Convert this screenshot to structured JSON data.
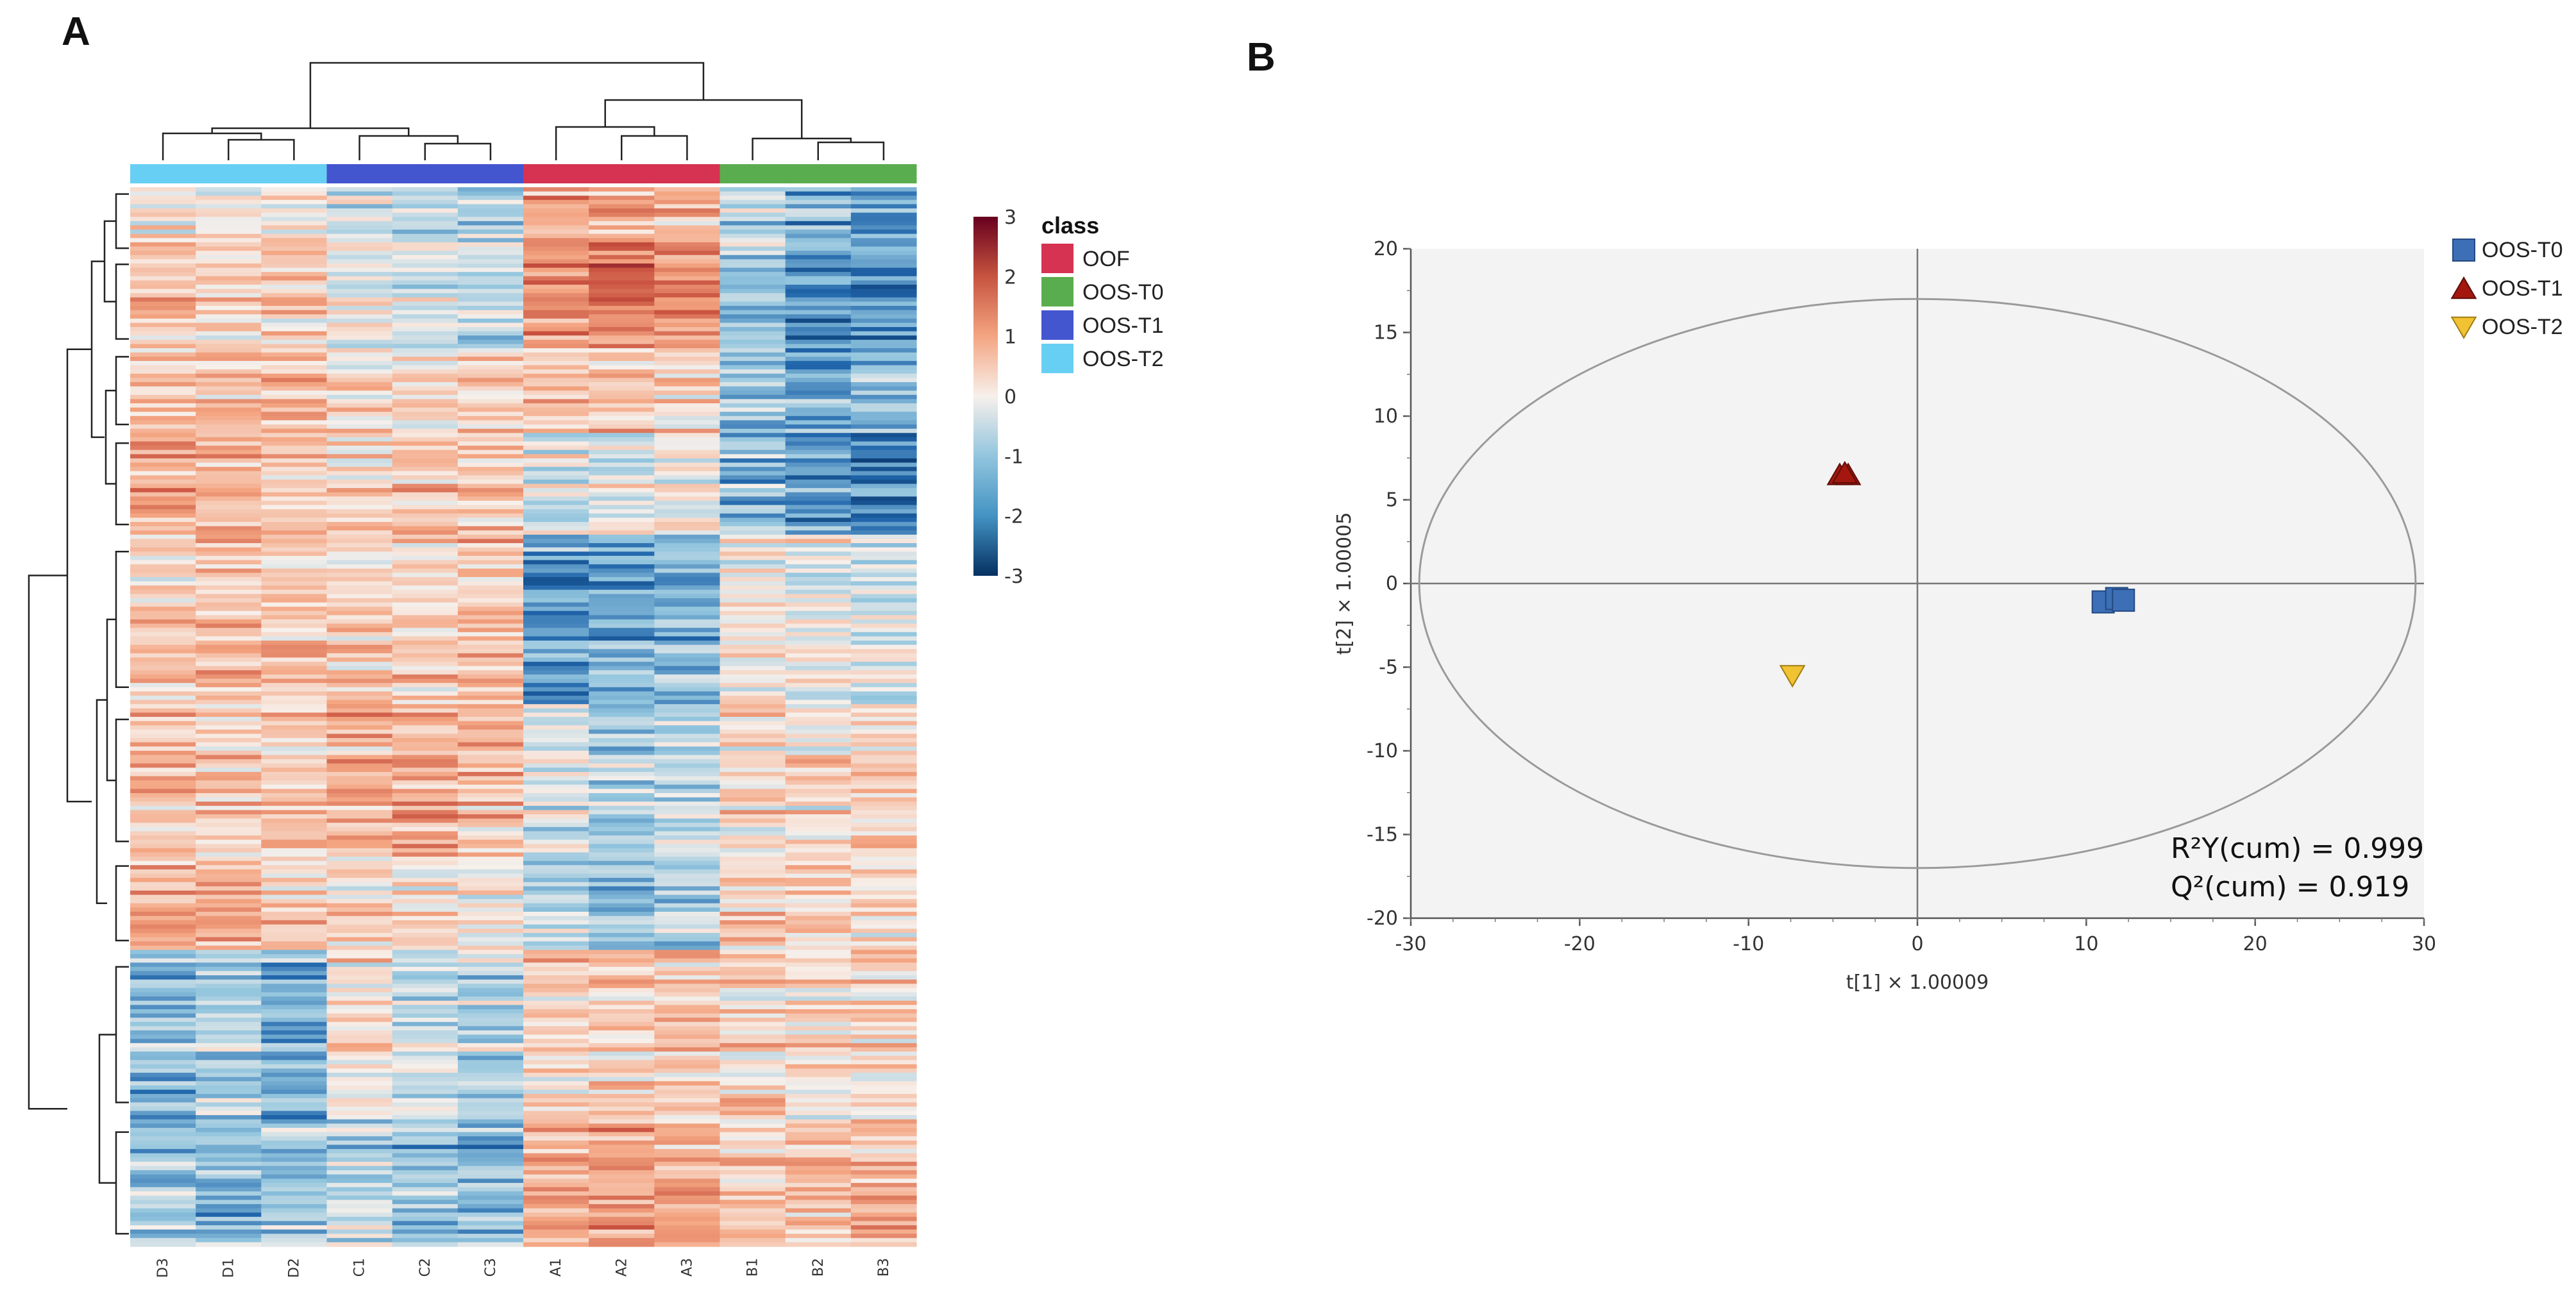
{
  "panels": {
    "a_label": "A",
    "b_label": "B"
  },
  "chart_data": [
    {
      "type": "heatmap",
      "panel": "A",
      "samples": [
        "D3",
        "D1",
        "D2",
        "C1",
        "C2",
        "C3",
        "A1",
        "A2",
        "A3",
        "B1",
        "B2",
        "B3"
      ],
      "sample_class": [
        "OOS-T2",
        "OOS-T2",
        "OOS-T2",
        "OOS-T1",
        "OOS-T1",
        "OOS-T1",
        "OOF",
        "OOF",
        "OOF",
        "OOS-T0",
        "OOS-T0",
        "OOS-T0"
      ],
      "class_legend": {
        "title": "class",
        "items": [
          {
            "label": "OOF",
            "color": "#d63251"
          },
          {
            "label": "OOS-T0",
            "color": "#5aad4e"
          },
          {
            "label": "OOS-T1",
            "color": "#4455d0"
          },
          {
            "label": "OOS-T2",
            "color": "#68cff4"
          }
        ]
      },
      "colorbar": {
        "ticks": [
          "3",
          "2",
          "1",
          "0",
          "-1",
          "-2",
          "-3"
        ],
        "range": [
          -3,
          3
        ],
        "colors": [
          "#67001f",
          "#c7543f",
          "#f4a582",
          "#f7f0eb",
          "#92c5de",
          "#4393c3",
          "#053061"
        ]
      },
      "row_blocks": [
        {
          "rows": 16,
          "pattern": [
            0.2,
            0.1,
            0.3,
            -0.3,
            -0.5,
            -0.7,
            0.9,
            1.0,
            0.8,
            -0.6,
            -1.2,
            -1.4
          ]
        },
        {
          "rows": 22,
          "pattern": [
            0.6,
            0.5,
            0.5,
            0.0,
            -0.2,
            -0.4,
            1.4,
            1.6,
            1.3,
            -1.0,
            -1.5,
            -1.5
          ]
        },
        {
          "rows": 20,
          "pattern": [
            0.5,
            0.6,
            0.7,
            0.4,
            0.1,
            0.2,
            0.6,
            0.5,
            0.3,
            -0.8,
            -1.2,
            -1.1
          ]
        },
        {
          "rows": 24,
          "pattern": [
            0.9,
            0.7,
            0.5,
            0.4,
            0.7,
            0.6,
            -0.2,
            0.0,
            0.1,
            -1.0,
            -1.4,
            -1.6
          ]
        },
        {
          "rows": 40,
          "pattern": [
            0.5,
            0.8,
            0.7,
            0.6,
            0.5,
            0.8,
            -1.3,
            -1.2,
            -1.1,
            0.2,
            0.0,
            -0.2
          ]
        },
        {
          "rows": 36,
          "pattern": [
            0.6,
            0.4,
            0.4,
            0.8,
            0.9,
            0.7,
            -0.2,
            -0.8,
            -0.6,
            0.3,
            0.2,
            0.4
          ]
        },
        {
          "rows": 22,
          "pattern": [
            0.9,
            0.8,
            0.6,
            0.3,
            0.2,
            0.1,
            -0.5,
            -1.0,
            -0.7,
            0.4,
            0.5,
            0.3
          ]
        },
        {
          "rows": 40,
          "pattern": [
            -1.0,
            -0.6,
            -1.2,
            0.2,
            -0.4,
            -0.6,
            0.4,
            0.6,
            0.5,
            0.4,
            0.3,
            0.4
          ]
        },
        {
          "rows": 30,
          "pattern": [
            -0.9,
            -1.1,
            -0.8,
            -0.6,
            -1.0,
            -1.1,
            0.9,
            1.0,
            0.8,
            0.5,
            0.6,
            0.7
          ]
        }
      ]
    },
    {
      "type": "scatter",
      "panel": "B",
      "xlabel": "t[1] × 1.00009",
      "ylabel": "t[2] × 1.00005",
      "xlim": [
        -30,
        30
      ],
      "ylim": [
        -20,
        20
      ],
      "xticks": [
        -30,
        -20,
        -10,
        0,
        10,
        20,
        30
      ],
      "yticks": [
        -20,
        -15,
        -10,
        -5,
        0,
        5,
        10,
        15,
        20
      ],
      "ellipse": {
        "rx": 29.5,
        "ry": 17
      },
      "series": [
        {
          "name": "OOS-T0",
          "marker": "square",
          "color": "#3d6fb6",
          "points": [
            [
              11.0,
              -1.1
            ],
            [
              11.8,
              -0.9
            ],
            [
              12.2,
              -1.0
            ]
          ]
        },
        {
          "name": "OOS-T1",
          "marker": "triangle-up",
          "color": "#a3170f",
          "points": [
            [
              -4.6,
              6.5
            ],
            [
              -4.1,
              6.5
            ],
            [
              -4.3,
              6.6
            ]
          ]
        },
        {
          "name": "OOS-T2",
          "marker": "triangle-down",
          "color": "#f1c232",
          "points": [
            [
              -7.4,
              -5.5
            ]
          ]
        }
      ],
      "stats": {
        "r2y": "R²Y(cum) = 0.999",
        "q2": "Q²(cum) = 0.919"
      }
    }
  ]
}
